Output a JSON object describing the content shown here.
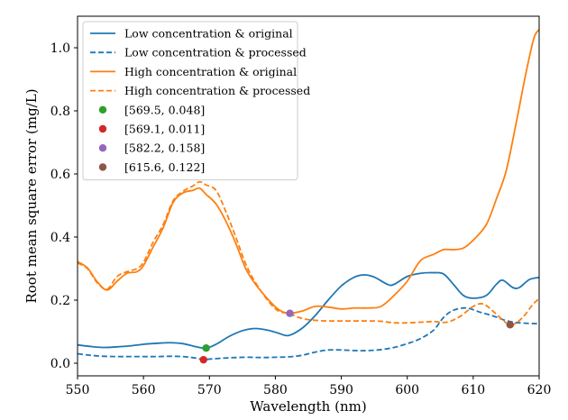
{
  "chart_data": {
    "type": "line",
    "xlabel": "Wavelength (nm)",
    "ylabel": "Root mean square error (mg/L)",
    "xlim": [
      550,
      620
    ],
    "ylim": [
      -0.04,
      1.1
    ],
    "xticks": [
      550,
      560,
      570,
      580,
      590,
      600,
      610,
      620
    ],
    "yticks": [
      0.0,
      0.2,
      0.4,
      0.6,
      0.8,
      1.0
    ],
    "xtick_labels": [
      "550",
      "560",
      "570",
      "580",
      "590",
      "600",
      "610",
      "620"
    ],
    "ytick_labels": [
      "0.0",
      "0.2",
      "0.4",
      "0.6",
      "0.8",
      "1.0"
    ],
    "grid": false,
    "legend_position": "top-left",
    "series": [
      {
        "name": "Low concentration & original",
        "color": "#1f77b4",
        "dash": "solid",
        "points": [
          [
            550,
            0.058
          ],
          [
            552,
            0.053
          ],
          [
            554,
            0.05
          ],
          [
            556,
            0.052
          ],
          [
            558,
            0.055
          ],
          [
            560,
            0.06
          ],
          [
            562,
            0.063
          ],
          [
            564,
            0.065
          ],
          [
            566,
            0.062
          ],
          [
            568,
            0.052
          ],
          [
            569.5,
            0.048
          ],
          [
            571,
            0.06
          ],
          [
            573,
            0.085
          ],
          [
            575,
            0.103
          ],
          [
            577,
            0.11
          ],
          [
            579,
            0.104
          ],
          [
            580.5,
            0.095
          ],
          [
            582,
            0.088
          ],
          [
            584,
            0.11
          ],
          [
            586,
            0.15
          ],
          [
            588,
            0.2
          ],
          [
            590,
            0.245
          ],
          [
            592,
            0.273
          ],
          [
            593.5,
            0.28
          ],
          [
            595,
            0.273
          ],
          [
            597,
            0.25
          ],
          [
            598,
            0.25
          ],
          [
            600,
            0.275
          ],
          [
            602,
            0.285
          ],
          [
            604,
            0.287
          ],
          [
            605.5,
            0.283
          ],
          [
            607,
            0.25
          ],
          [
            608.5,
            0.215
          ],
          [
            610,
            0.206
          ],
          [
            612,
            0.215
          ],
          [
            613.5,
            0.25
          ],
          [
            614.5,
            0.263
          ],
          [
            616,
            0.24
          ],
          [
            617,
            0.24
          ],
          [
            618.5,
            0.265
          ],
          [
            620,
            0.272
          ]
        ]
      },
      {
        "name": "Low concentration & processed",
        "color": "#1f77b4",
        "dash": "dashed",
        "points": [
          [
            550,
            0.03
          ],
          [
            552,
            0.025
          ],
          [
            554,
            0.022
          ],
          [
            556,
            0.021
          ],
          [
            558,
            0.021
          ],
          [
            560,
            0.021
          ],
          [
            562,
            0.021
          ],
          [
            564,
            0.022
          ],
          [
            566,
            0.021
          ],
          [
            568,
            0.016
          ],
          [
            569.1,
            0.011
          ],
          [
            570,
            0.013
          ],
          [
            572,
            0.016
          ],
          [
            574,
            0.018
          ],
          [
            576,
            0.019
          ],
          [
            578,
            0.018
          ],
          [
            580,
            0.019
          ],
          [
            582,
            0.02
          ],
          [
            584,
            0.025
          ],
          [
            586,
            0.035
          ],
          [
            588,
            0.042
          ],
          [
            590,
            0.042
          ],
          [
            592,
            0.04
          ],
          [
            594,
            0.04
          ],
          [
            596,
            0.043
          ],
          [
            598,
            0.05
          ],
          [
            600,
            0.062
          ],
          [
            602,
            0.078
          ],
          [
            604,
            0.105
          ],
          [
            605.5,
            0.145
          ],
          [
            607,
            0.168
          ],
          [
            609,
            0.175
          ],
          [
            611,
            0.162
          ],
          [
            613,
            0.15
          ],
          [
            615,
            0.135
          ],
          [
            617,
            0.128
          ],
          [
            620,
            0.125
          ]
        ]
      },
      {
        "name": "High concentration & original",
        "color": "#ff7f0e",
        "dash": "solid",
        "points": [
          [
            550,
            0.322
          ],
          [
            551.5,
            0.302
          ],
          [
            553,
            0.258
          ],
          [
            554.5,
            0.232
          ],
          [
            556,
            0.26
          ],
          [
            557.5,
            0.285
          ],
          [
            559,
            0.29
          ],
          [
            560,
            0.31
          ],
          [
            561.5,
            0.37
          ],
          [
            563,
            0.43
          ],
          [
            564.5,
            0.51
          ],
          [
            566,
            0.54
          ],
          [
            567.5,
            0.548
          ],
          [
            568.5,
            0.555
          ],
          [
            569.5,
            0.535
          ],
          [
            571,
            0.505
          ],
          [
            572.5,
            0.45
          ],
          [
            574,
            0.38
          ],
          [
            575.5,
            0.3
          ],
          [
            577,
            0.25
          ],
          [
            579,
            0.2
          ],
          [
            580.5,
            0.17
          ],
          [
            582,
            0.158
          ],
          [
            584,
            0.165
          ],
          [
            586,
            0.18
          ],
          [
            588,
            0.178
          ],
          [
            590,
            0.172
          ],
          [
            592,
            0.175
          ],
          [
            594,
            0.175
          ],
          [
            596,
            0.18
          ],
          [
            598,
            0.215
          ],
          [
            600,
            0.26
          ],
          [
            602,
            0.325
          ],
          [
            604,
            0.345
          ],
          [
            605.5,
            0.36
          ],
          [
            607,
            0.36
          ],
          [
            608.5,
            0.365
          ],
          [
            610,
            0.39
          ],
          [
            612,
            0.44
          ],
          [
            613.5,
            0.52
          ],
          [
            615,
            0.61
          ],
          [
            616.5,
            0.76
          ],
          [
            618,
            0.92
          ],
          [
            619.2,
            1.03
          ],
          [
            620,
            1.058
          ]
        ]
      },
      {
        "name": "High concentration & processed",
        "color": "#ff7f0e",
        "dash": "dashed",
        "points": [
          [
            550,
            0.318
          ],
          [
            551.5,
            0.3
          ],
          [
            553,
            0.255
          ],
          [
            554.5,
            0.235
          ],
          [
            556,
            0.275
          ],
          [
            557.5,
            0.29
          ],
          [
            559,
            0.3
          ],
          [
            560,
            0.32
          ],
          [
            561.5,
            0.385
          ],
          [
            563,
            0.44
          ],
          [
            564.5,
            0.515
          ],
          [
            566,
            0.545
          ],
          [
            567.5,
            0.562
          ],
          [
            568.5,
            0.575
          ],
          [
            569.5,
            0.565
          ],
          [
            571,
            0.548
          ],
          [
            572.5,
            0.48
          ],
          [
            574,
            0.4
          ],
          [
            575.5,
            0.315
          ],
          [
            577,
            0.255
          ],
          [
            579,
            0.195
          ],
          [
            580.5,
            0.165
          ],
          [
            582,
            0.158
          ],
          [
            584,
            0.142
          ],
          [
            586,
            0.136
          ],
          [
            588,
            0.134
          ],
          [
            590,
            0.134
          ],
          [
            592,
            0.134
          ],
          [
            594,
            0.134
          ],
          [
            596,
            0.133
          ],
          [
            598,
            0.128
          ],
          [
            600,
            0.128
          ],
          [
            602,
            0.13
          ],
          [
            604,
            0.132
          ],
          [
            606,
            0.13
          ],
          [
            608,
            0.148
          ],
          [
            610,
            0.18
          ],
          [
            611.5,
            0.188
          ],
          [
            613,
            0.165
          ],
          [
            615,
            0.128
          ],
          [
            616,
            0.122
          ],
          [
            617.5,
            0.145
          ],
          [
            619,
            0.185
          ],
          [
            620,
            0.205
          ]
        ]
      }
    ],
    "markers": [
      {
        "label": "[569.5, 0.048]",
        "x": 569.5,
        "y": 0.048,
        "color": "#2ca02c"
      },
      {
        "label": "[569.1, 0.011]",
        "x": 569.1,
        "y": 0.011,
        "color": "#d62728"
      },
      {
        "label": "[582.2, 0.158]",
        "x": 582.2,
        "y": 0.158,
        "color": "#9467bd"
      },
      {
        "label": "[615.6, 0.122]",
        "x": 615.6,
        "y": 0.122,
        "color": "#8c564b"
      }
    ]
  }
}
